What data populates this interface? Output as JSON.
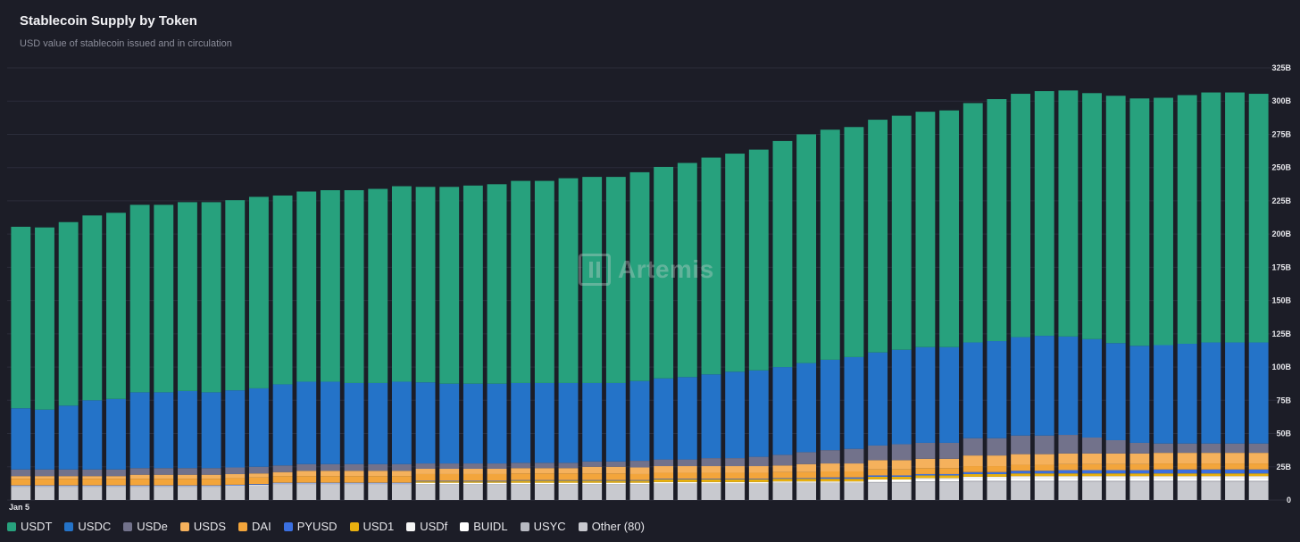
{
  "header": {
    "title": "Stablecoin Supply by Token",
    "subtitle": "USD value of stablecoin issued and in circulation"
  },
  "watermark": {
    "text": "Artemis",
    "icon": "artemis-logo-icon"
  },
  "colors": {
    "USDT": "#27a17d",
    "USDC": "#2473c8",
    "USDe": "#72728b",
    "USDS": "#f5b15c",
    "DAI": "#f3a53b",
    "PYUSD": "#3a6fe0",
    "USD1": "#e8b00f",
    "USDf": "#f5f5f5",
    "BUIDL": "#ffffff",
    "USYC": "#b8bac2",
    "Other (80)": "#c8c9cf"
  },
  "chart_data": {
    "type": "bar",
    "stacked": true,
    "x_label_shown": "Jan 5",
    "ylim": [
      0,
      325
    ],
    "y_ticks": [
      "0",
      "25B",
      "50B",
      "75B",
      "100B",
      "125B",
      "150B",
      "175B",
      "200B",
      "225B",
      "250B",
      "275B",
      "300B",
      "325B"
    ],
    "y_unit": "B",
    "grid": true,
    "legend_position": "bottom-left",
    "num_bars": 53,
    "series": [
      {
        "name": "Other (80)",
        "values": [
          10,
          10,
          10,
          10,
          10,
          10,
          10,
          10,
          10,
          10.5,
          11,
          12,
          12,
          12,
          12,
          12,
          12,
          12,
          12,
          12,
          12,
          12,
          12,
          12,
          12,
          12,
          12,
          12.5,
          12.5,
          12.5,
          12.5,
          12.5,
          13,
          13,
          13,
          13,
          13,
          13,
          13.5,
          13.5,
          14,
          14,
          14,
          14,
          14,
          14,
          14,
          14,
          14,
          14,
          14,
          14,
          14
        ]
      },
      {
        "name": "USYC",
        "values": [
          0,
          0,
          0,
          0,
          0,
          0,
          0,
          0,
          0,
          0,
          0,
          0,
          0,
          0,
          0,
          0,
          0,
          0,
          0,
          0,
          0,
          0,
          0,
          0,
          0,
          0,
          0,
          0,
          0,
          0,
          0,
          0,
          0,
          0,
          0,
          0,
          0.5,
          0.5,
          0.5,
          0.5,
          0.5,
          0.5,
          0.5,
          0.5,
          0.5,
          0.5,
          0.5,
          0.5,
          0.5,
          0.5,
          0.5,
          0.5,
          0.5
        ]
      },
      {
        "name": "BUIDL",
        "values": [
          0.5,
          0.5,
          0.5,
          0.5,
          0.5,
          0.5,
          0.5,
          0.5,
          0.5,
          0.5,
          0.5,
          0.5,
          0.5,
          0.5,
          0.5,
          0.5,
          0.5,
          1,
          1,
          1,
          1,
          1,
          1,
          1,
          1,
          1,
          1,
          1,
          1,
          1,
          1,
          1,
          1,
          1,
          1,
          1,
          2,
          2,
          2,
          2,
          2,
          2,
          2,
          2,
          2,
          2,
          2,
          2,
          2,
          2,
          2,
          2,
          2
        ]
      },
      {
        "name": "USDf",
        "values": [
          0,
          0,
          0,
          0,
          0,
          0,
          0,
          0,
          0,
          0,
          0,
          0,
          0,
          0,
          0,
          0,
          0,
          0,
          0,
          0,
          0,
          0,
          0,
          0,
          0,
          0,
          0,
          0,
          0,
          0,
          0,
          0,
          0,
          0,
          0,
          0,
          0,
          0,
          0.5,
          0.5,
          1,
          1,
          1.5,
          1.5,
          1.5,
          1.5,
          1.5,
          1.5,
          1.5,
          1.5,
          1.5,
          1.5,
          1.5
        ]
      },
      {
        "name": "USD1",
        "values": [
          0,
          0,
          0,
          0,
          0,
          0,
          0,
          0,
          0,
          0,
          0,
          0,
          0,
          0,
          0,
          0,
          0,
          1,
          1,
          1,
          1,
          1.5,
          1.5,
          1.5,
          1.5,
          1.5,
          1.5,
          2,
          2,
          2,
          2,
          2,
          2,
          2,
          2,
          2,
          2,
          2,
          2,
          2,
          2,
          2,
          2,
          2,
          2,
          2,
          2,
          2,
          2,
          2,
          2,
          2,
          2
        ]
      },
      {
        "name": "PYUSD",
        "values": [
          0.5,
          0.5,
          0.5,
          0.5,
          0.5,
          0.5,
          0.5,
          0.5,
          0.5,
          0.5,
          0.5,
          0.5,
          0.5,
          0.5,
          0.5,
          0.5,
          0.5,
          0.5,
          0.5,
          0.5,
          0.5,
          0.5,
          0.5,
          0.5,
          0.5,
          0.5,
          0.5,
          0.5,
          0.5,
          0.5,
          0.5,
          0.5,
          0.5,
          0.5,
          1,
          1,
          1,
          1,
          1,
          1,
          1.5,
          1.5,
          2,
          2,
          2.5,
          2.5,
          2.5,
          2.5,
          3,
          3,
          3,
          3,
          3
        ]
      },
      {
        "name": "DAI",
        "values": [
          5,
          5,
          5,
          5,
          5,
          5,
          5,
          5,
          5,
          5,
          5,
          5,
          5,
          5,
          5,
          5,
          5,
          5,
          5,
          5,
          5,
          5,
          5,
          5,
          5,
          5,
          4.5,
          4.5,
          4.5,
          4.5,
          4.5,
          4.5,
          4.5,
          4.5,
          4.5,
          4.5,
          4.5,
          4.5,
          4.5,
          4.5,
          4.5,
          4.5,
          4.5,
          4.5,
          4.5,
          4.5,
          4.5,
          4.5,
          4.5,
          4.5,
          4.5,
          4.5,
          4.5
        ]
      },
      {
        "name": "USDS",
        "values": [
          2,
          2,
          2,
          2,
          2,
          3,
          3,
          3,
          3,
          3,
          3,
          3,
          4,
          4,
          4,
          4,
          4,
          4,
          4,
          4,
          4,
          4,
          4,
          4,
          5,
          5,
          5,
          5,
          5,
          5,
          5,
          5,
          5,
          6,
          6,
          6,
          7,
          7,
          7,
          7,
          8,
          8,
          8,
          8,
          8,
          8,
          8,
          8,
          8,
          8,
          8,
          8,
          8
        ]
      },
      {
        "name": "USDe",
        "values": [
          5,
          5,
          5,
          5,
          5,
          5,
          5,
          5,
          5,
          5,
          5,
          5,
          5,
          5,
          5,
          5,
          5,
          4,
          4,
          4,
          4,
          4,
          4,
          4,
          4,
          4,
          5,
          5,
          5,
          6,
          6,
          7,
          8,
          9,
          10,
          11,
          11,
          12,
          12,
          12,
          13,
          13,
          14,
          14,
          14,
          12,
          10,
          8,
          7,
          7,
          7,
          7,
          7
        ]
      },
      {
        "name": "USDC",
        "values": [
          46,
          45,
          48,
          52,
          53,
          57,
          57,
          58,
          57,
          58,
          59,
          61,
          62,
          62,
          61,
          61,
          62,
          61,
          60,
          60,
          60,
          60,
          60,
          60,
          59,
          59,
          60,
          61,
          62,
          63,
          65,
          65,
          66,
          67,
          68,
          69,
          70,
          71,
          72,
          72,
          72,
          73,
          74,
          75,
          74,
          74,
          73,
          73,
          74,
          75,
          76,
          76,
          76
        ]
      },
      {
        "name": "USDT",
        "values": [
          136.5,
          137,
          138,
          139,
          140,
          141,
          141,
          142,
          143,
          143,
          144,
          142,
          143,
          144,
          145,
          146,
          147,
          147,
          148,
          149,
          150,
          152,
          152,
          154,
          155,
          155,
          157,
          159,
          161,
          163,
          164,
          166,
          170,
          172,
          173,
          173,
          175,
          176,
          177,
          178,
          180,
          182,
          183,
          184,
          185,
          185,
          186,
          186,
          186,
          187,
          188,
          188,
          187
        ]
      }
    ]
  },
  "legend": {
    "items": [
      {
        "label": "USDT",
        "key": "USDT"
      },
      {
        "label": "USDC",
        "key": "USDC"
      },
      {
        "label": "USDe",
        "key": "USDe"
      },
      {
        "label": "USDS",
        "key": "USDS"
      },
      {
        "label": "DAI",
        "key": "DAI"
      },
      {
        "label": "PYUSD",
        "key": "PYUSD"
      },
      {
        "label": "USD1",
        "key": "USD1"
      },
      {
        "label": "USDf",
        "key": "USDf"
      },
      {
        "label": "BUIDL",
        "key": "BUIDL"
      },
      {
        "label": "USYC",
        "key": "USYC"
      },
      {
        "label": "Other (80)",
        "key": "Other (80)"
      }
    ]
  }
}
